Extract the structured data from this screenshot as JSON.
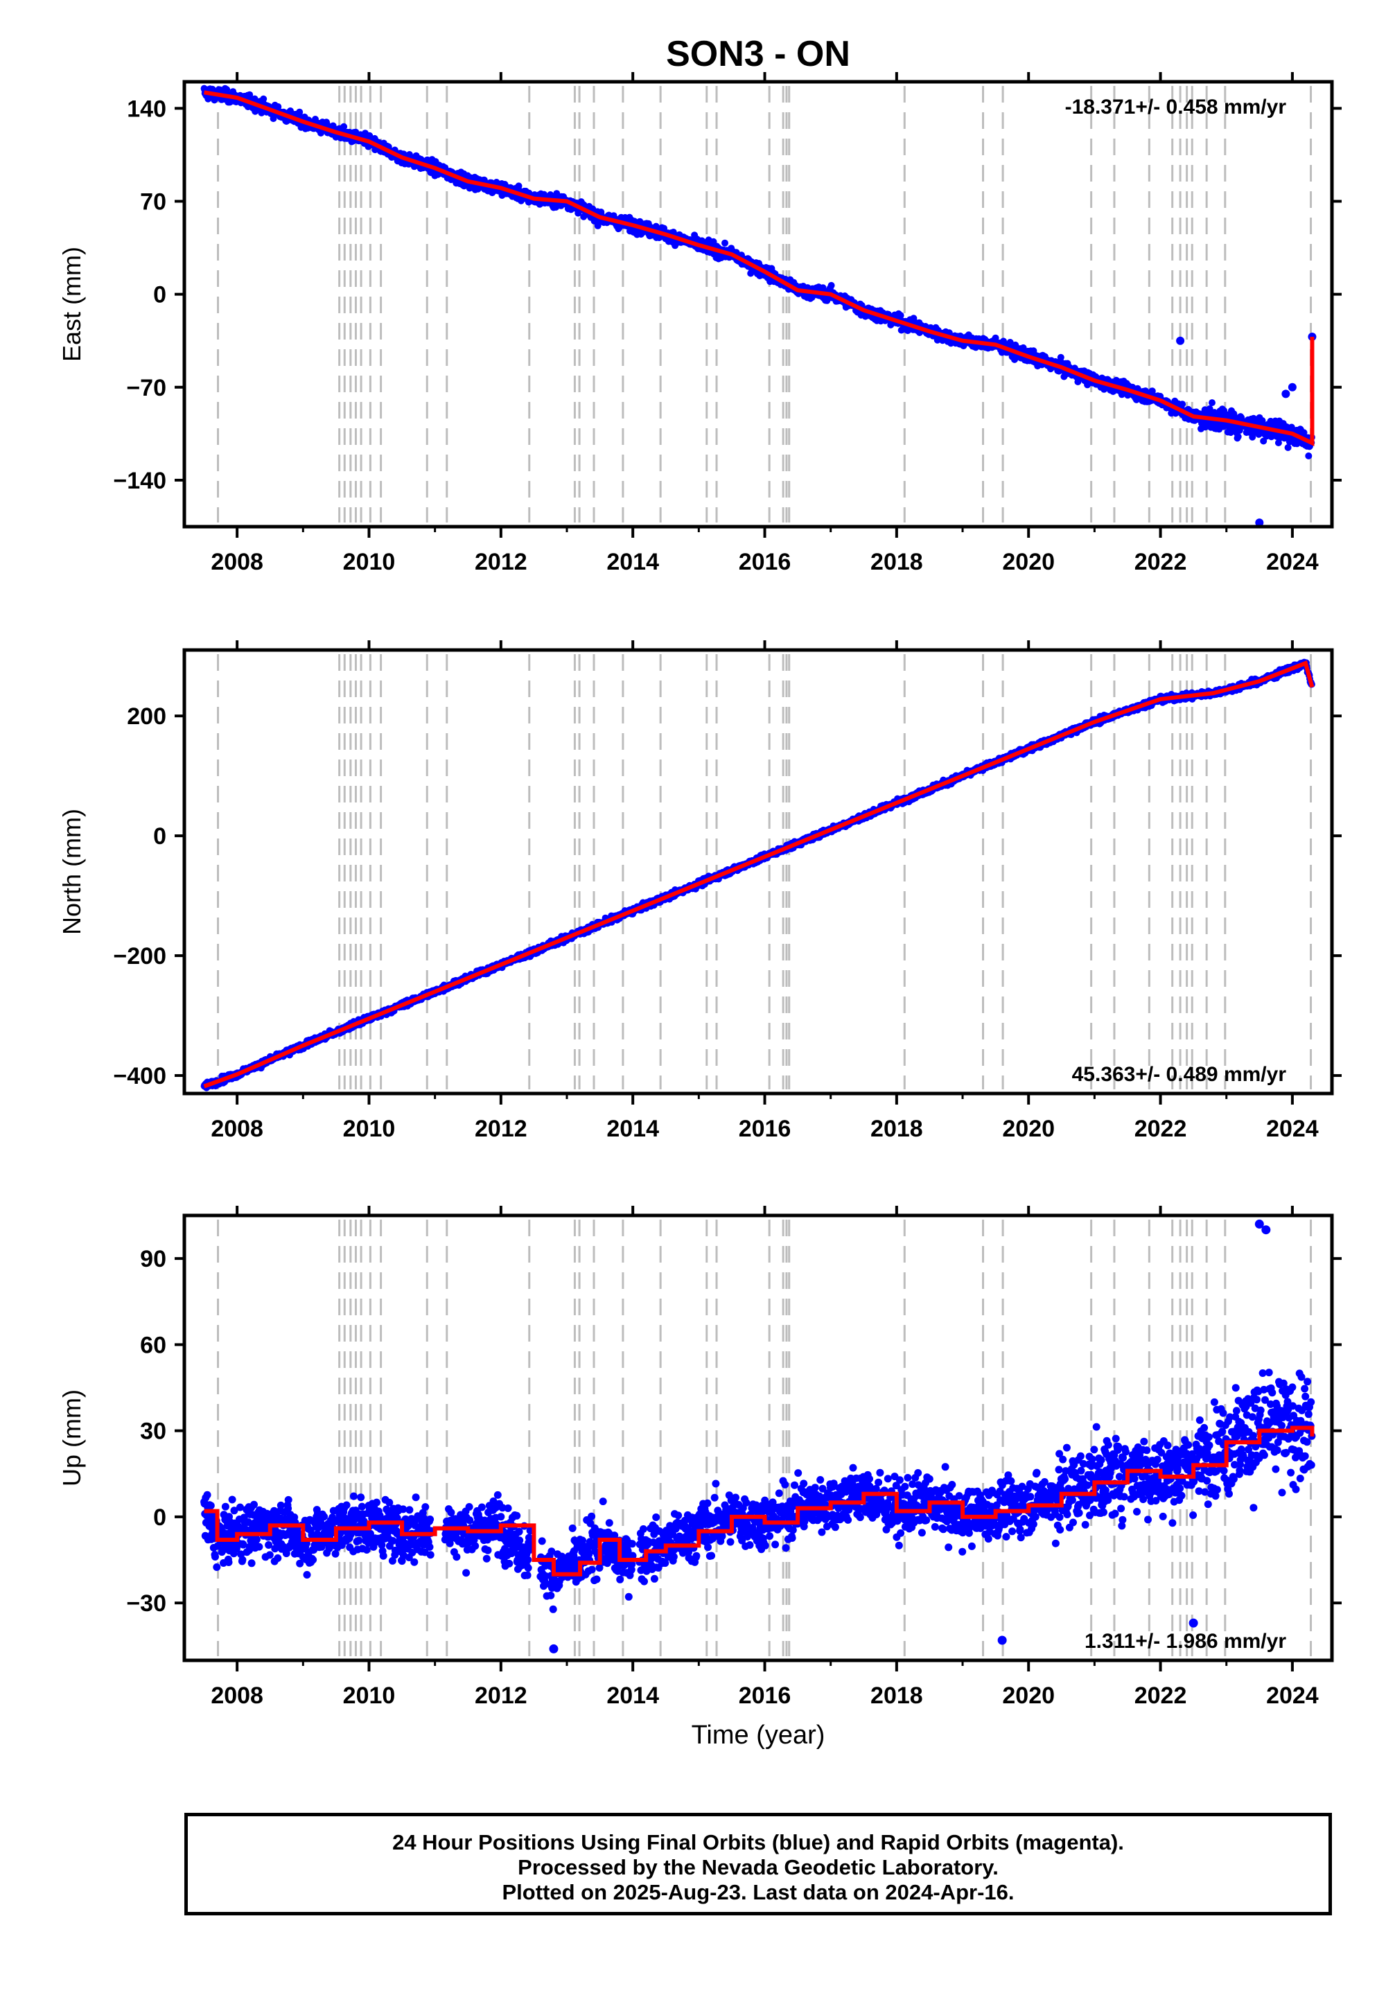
{
  "title": "SON3 - ON",
  "colors": {
    "data_points": "#0000ff",
    "model_line": "#ff0000",
    "offset_lines": "#bdbdbd",
    "axes": "#000000"
  },
  "chart_data": [
    {
      "type": "scatter",
      "panel": "east",
      "ylabel": "East (mm)",
      "xlabel": "",
      "xlim": [
        2007.2,
        2024.6
      ],
      "ylim": [
        -175,
        160
      ],
      "yticks": [
        140,
        70,
        0,
        -70,
        -140
      ],
      "xticks": [
        "2008",
        "2010",
        "2012",
        "2014",
        "2016",
        "2018",
        "2020",
        "2022",
        "2024"
      ],
      "rate_label": "-18.371+/- 0.458 mm/yr",
      "grid": false,
      "series": [
        {
          "x": [
            2007.5,
            2008.0,
            2009.0,
            2009.5,
            2010.0,
            2010.5,
            2011.0,
            2011.5,
            2012.0,
            2012.5,
            2013.0,
            2013.5,
            2014.0,
            2014.5,
            2015.0,
            2015.5,
            2016.0,
            2016.5,
            2017.0,
            2017.5,
            2018.0,
            2018.5,
            2019.0,
            2019.5,
            2020.0,
            2020.5,
            2021.0,
            2021.5,
            2022.0,
            2022.5,
            2023.0,
            2023.5,
            2024.0,
            2024.3
          ],
          "y": [
            152,
            148,
            130,
            122,
            115,
            103,
            95,
            85,
            80,
            72,
            70,
            58,
            52,
            45,
            37,
            30,
            17,
            3,
            0,
            -12,
            -20,
            -28,
            -35,
            -38,
            -47,
            -55,
            -65,
            -72,
            -80,
            -92,
            -95,
            -100,
            -105,
            -112
          ]
        },
        {
          "x": [
            2022.3,
            2023.5,
            2023.9,
            2024.0,
            2024.3
          ],
          "y": [
            -35,
            -172,
            -75,
            -70,
            -32
          ]
        }
      ]
    },
    {
      "type": "scatter",
      "panel": "north",
      "ylabel": "North (mm)",
      "xlabel": "",
      "xlim": [
        2007.2,
        2024.6
      ],
      "ylim": [
        -430,
        310
      ],
      "yticks": [
        200,
        0,
        -200,
        -400
      ],
      "xticks": [
        "2008",
        "2010",
        "2012",
        "2014",
        "2016",
        "2018",
        "2020",
        "2022",
        "2024"
      ],
      "rate_label": "45.363+/- 0.489 mm/yr",
      "grid": false,
      "series": [
        {
          "x": [
            2007.5,
            2008.0,
            2009.0,
            2010.0,
            2011.0,
            2012.0,
            2013.0,
            2014.0,
            2015.0,
            2016.0,
            2017.0,
            2018.0,
            2019.0,
            2020.0,
            2021.0,
            2022.0,
            2022.8,
            2023.5,
            2024.2,
            2024.3
          ],
          "y": [
            -418,
            -398,
            -350,
            -305,
            -260,
            -215,
            -170,
            -125,
            -80,
            -35,
            10,
            55,
            100,
            145,
            190,
            228,
            238,
            258,
            288,
            248
          ]
        }
      ]
    },
    {
      "type": "scatter",
      "panel": "up",
      "ylabel": "Up (mm)",
      "xlabel": "Time (year)",
      "xlim": [
        2007.2,
        2024.6
      ],
      "ylim": [
        -50,
        105
      ],
      "yticks": [
        90,
        60,
        30,
        0,
        -30
      ],
      "xticks": [
        "2008",
        "2010",
        "2012",
        "2014",
        "2016",
        "2018",
        "2020",
        "2022",
        "2024"
      ],
      "rate_label": "1.311+/- 1.986 mm/yr",
      "grid": false,
      "series": [
        {
          "x": [
            2007.5,
            2007.7,
            2008.0,
            2008.5,
            2009.0,
            2009.5,
            2010.0,
            2010.5,
            2011.0,
            2011.5,
            2012.0,
            2012.5,
            2012.8,
            2013.2,
            2013.5,
            2013.8,
            2014.2,
            2014.5,
            2015.0,
            2015.5,
            2016.0,
            2016.5,
            2017.0,
            2017.5,
            2018.0,
            2018.5,
            2019.0,
            2019.5,
            2020.0,
            2020.5,
            2021.0,
            2021.5,
            2022.0,
            2022.5,
            2023.0,
            2023.5,
            2024.0,
            2024.3
          ],
          "y": [
            2,
            -8,
            -6,
            -3,
            -8,
            -4,
            -2,
            -6,
            -4,
            -5,
            -3,
            -15,
            -20,
            -16,
            -8,
            -15,
            -12,
            -10,
            -5,
            0,
            -2,
            3,
            5,
            8,
            2,
            5,
            0,
            2,
            4,
            8,
            12,
            16,
            14,
            18,
            26,
            30,
            31,
            28
          ]
        },
        {
          "x": [
            2023.5,
            2023.6,
            2012.8,
            2019.6,
            2022.5
          ],
          "y": [
            102,
            100,
            -46,
            -43,
            -37
          ]
        }
      ]
    }
  ],
  "footer": {
    "line1": "24 Hour Positions Using Final Orbits (blue) and Rapid Orbits (magenta).",
    "line2": "Processed by the Nevada Geodetic Laboratory.",
    "line3": "Plotted on 2025-Aug-23. Last data on 2024-Apr-16."
  }
}
